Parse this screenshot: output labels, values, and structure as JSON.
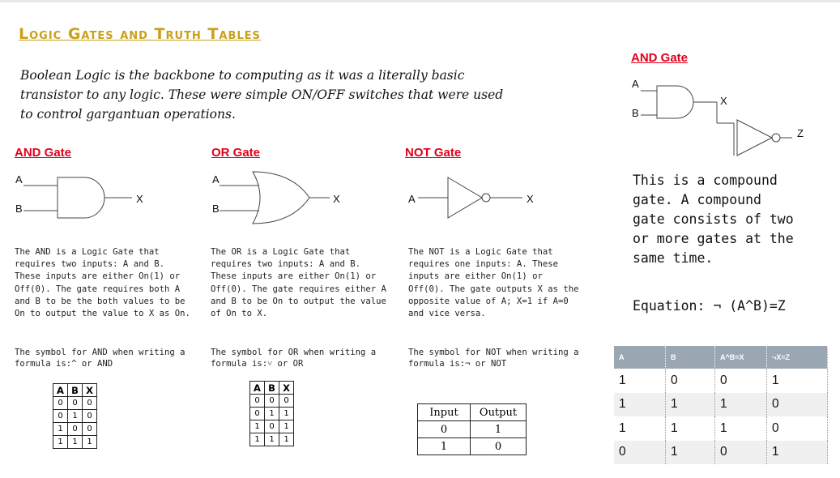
{
  "title": "Logic Gates and Truth Tables",
  "intro": "Boolean Logic is the backbone to computing as it was a literally basic transistor to any logic. These were simple ON/OFF switches that were used to control gargantuan operations.",
  "and_gate": {
    "title": "AND Gate",
    "input_a": "A",
    "input_b": "B",
    "output": "X",
    "description": "The AND is a Logic Gate that requires two inputs: A and B. These inputs are either On(1) or Off(0). The gate requires both A and B to be the both values to be On to output the value to X as On.",
    "symbol_text": "The symbol for AND when writing a formula is:^ or AND",
    "truth_table": [
      [
        "A",
        "B",
        "X"
      ],
      [
        "0",
        "0",
        "0"
      ],
      [
        "0",
        "1",
        "0"
      ],
      [
        "1",
        "0",
        "0"
      ],
      [
        "1",
        "1",
        "1"
      ]
    ]
  },
  "or_gate": {
    "title": "OR Gate",
    "input_a": "A",
    "input_b": "B",
    "output": "X",
    "description": "The OR is a Logic Gate that requires two inputs: A and B. These inputs are either On(1) or Off(0). The gate requires either A and B to be On to output the value of On to X.",
    "symbol_text": "The symbol for OR  when writing a formula is:˅ or OR",
    "truth_table": [
      [
        "A",
        "B",
        "X"
      ],
      [
        "0",
        "0",
        "0"
      ],
      [
        "0",
        "1",
        "1"
      ],
      [
        "1",
        "0",
        "1"
      ],
      [
        "1",
        "1",
        "1"
      ]
    ]
  },
  "not_gate": {
    "title": "NOT Gate",
    "input_a": "A",
    "output": "X",
    "description": "The NOT is a Logic Gate that requires one inputs: A. These inputs are either On(1) or Off(0). The gate outputs X as the opposite value of A; X=1 if A=0 and vice versa.",
    "symbol_text": "The symbol for NOT when writing a formula is:¬ or NOT",
    "io_table": [
      [
        "Input",
        "Output"
      ],
      [
        "0",
        "1"
      ],
      [
        "1",
        "0"
      ]
    ]
  },
  "compound": {
    "title": "AND Gate",
    "input_a": "A",
    "input_b": "B",
    "mid": "X",
    "output": "Z",
    "description": "This is a compound gate. A compound gate consists of two or more gates at the same time.",
    "equation": "Equation: ¬ (A^B)=Z",
    "table_headers": [
      "A",
      "B",
      "A^B=X",
      "¬X=Z"
    ],
    "table_rows": [
      [
        "1",
        "0",
        "0",
        "1"
      ],
      [
        "1",
        "1",
        "1",
        "0"
      ],
      [
        "1",
        "1",
        "1",
        "0"
      ],
      [
        "0",
        "1",
        "0",
        "1"
      ]
    ]
  }
}
